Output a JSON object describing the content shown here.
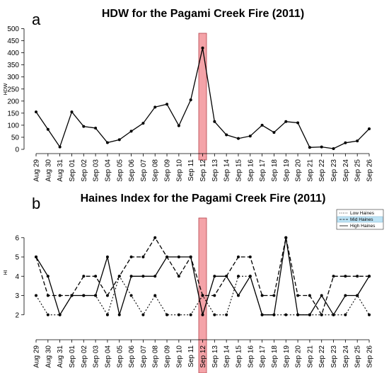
{
  "chart_data": [
    {
      "type": "line",
      "panel": "a",
      "title": "HDW for the Pagami Creek Fire (2011)",
      "xlabel": "",
      "ylabel": "HDW",
      "ylim": [
        0,
        500
      ],
      "yticks": [
        0,
        50,
        100,
        150,
        200,
        250,
        300,
        350,
        400,
        450,
        500
      ],
      "categories": [
        "Aug 29",
        "Aug 30",
        "Aug 31",
        "Sep 01",
        "Sep 02",
        "Sep 03",
        "Sep 04",
        "Sep 05",
        "Sep 06",
        "Sep 07",
        "Sep 08",
        "Sep 09",
        "Sep 10",
        "Sep 11",
        "Sep 12",
        "Sep 13",
        "Sep 14",
        "Sep 15",
        "Sep 16",
        "Sep 17",
        "Sep 18",
        "Sep 19",
        "Sep 20",
        "Sep 21",
        "Sep 22",
        "Sep 23",
        "Sep 24",
        "Sep 25",
        "Sep 26"
      ],
      "highlight": "Sep 12",
      "highlight_color": "#f4a3a8",
      "values": [
        155,
        83,
        10,
        155,
        95,
        88,
        28,
        40,
        75,
        108,
        175,
        187,
        98,
        205,
        420,
        115,
        60,
        45,
        55,
        100,
        70,
        115,
        110,
        8,
        10,
        3,
        27,
        35,
        85
      ]
    },
    {
      "type": "line",
      "panel": "b",
      "title": "Haines Index for the Pagami Creek Fire (2011)",
      "xlabel": "",
      "ylabel": "HI",
      "ylim": [
        1,
        6.8
      ],
      "yticks": [
        2,
        3,
        4,
        5,
        6
      ],
      "categories": [
        "Aug 29",
        "Aug 30",
        "Aug 31",
        "Sep 01",
        "Sep 02",
        "Sep 03",
        "Sep 04",
        "Sep 05",
        "Sep 06",
        "Sep 07",
        "Sep 08",
        "Sep 09",
        "Sep 10",
        "Sep 11",
        "Sep 12",
        "Sep 13",
        "Sep 14",
        "Sep 15",
        "Sep 16",
        "Sep 17",
        "Sep 18",
        "Sep 19",
        "Sep 20",
        "Sep 21",
        "Sep 22",
        "Sep 23",
        "Sep 24",
        "Sep 25",
        "Sep 26"
      ],
      "highlight": "Sep 12",
      "highlight_color": "#f4a3a8",
      "legend_position": "top-right",
      "series": [
        {
          "name": "Low Haines",
          "style": "dotted",
          "values": [
            3,
            2,
            2,
            3,
            3,
            3,
            2,
            4,
            3,
            2,
            3,
            2,
            2,
            2,
            3,
            2,
            2,
            4,
            4,
            2,
            2,
            2,
            2,
            2,
            2,
            2,
            2,
            3,
            2
          ]
        },
        {
          "name": "Mid Haines",
          "style": "dashed",
          "values": [
            5,
            3,
            3,
            3,
            4,
            4,
            3,
            4,
            5,
            5,
            6,
            5,
            4,
            5,
            3,
            3,
            4,
            5,
            5,
            3,
            3,
            6,
            3,
            3,
            2,
            4,
            4,
            4,
            4
          ]
        },
        {
          "name": "High Haines",
          "style": "solid",
          "values": [
            5,
            4,
            2,
            3,
            3,
            3,
            5,
            2,
            4,
            4,
            4,
            5,
            5,
            5,
            2,
            4,
            4,
            3,
            4,
            2,
            2,
            6,
            2,
            2,
            3,
            2,
            3,
            3,
            4
          ]
        }
      ]
    }
  ]
}
